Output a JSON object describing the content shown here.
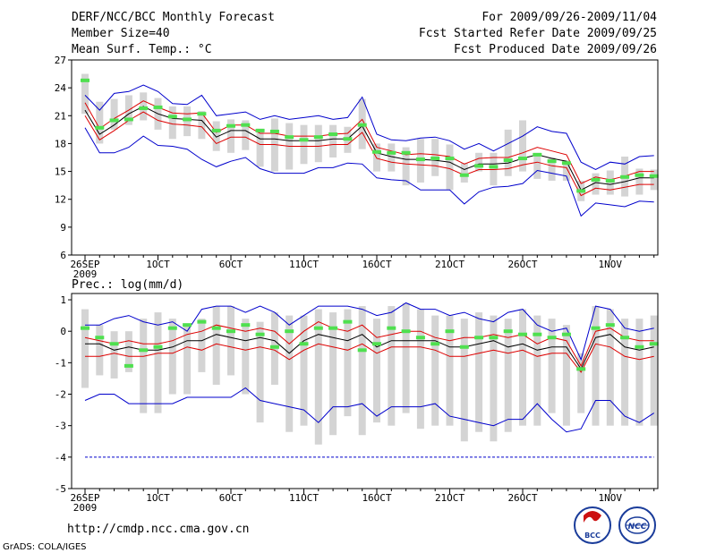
{
  "header": {
    "title": "DERF/NCC/BCC Monthly Forecast",
    "member_size": "Member Size=40",
    "variable": "Mean Surf. Temp.: °C",
    "valid_range": "For 2009/09/26-2009/11/04",
    "started": "Fcst Started Refer Date 2009/09/25",
    "produced": "Fcst Produced Date 2009/09/26"
  },
  "footer": {
    "url": "http://cmdp.ncc.cma.gov.cn",
    "credit": "GrADS: COLA/IGES",
    "logo_bcc": "BCC",
    "logo_ncc": "NCC"
  },
  "colors": {
    "box": "#d4d4d4",
    "mean": "#000000",
    "spread": "#dd0000",
    "extreme": "#0000cc",
    "obs": "#4fe04f",
    "dashed": "#0000cc"
  },
  "chart_data": [
    {
      "type": "line",
      "title": "Mean Surf. Temp.: °C",
      "xticks": [
        {
          "day": 0,
          "label": "26SEP",
          "sub": "2009"
        },
        {
          "day": 5,
          "label": "1OCT"
        },
        {
          "day": 10,
          "label": "6OCT"
        },
        {
          "day": 15,
          "label": "11OCT"
        },
        {
          "day": 20,
          "label": "16OCT"
        },
        {
          "day": 25,
          "label": "21OCT"
        },
        {
          "day": 30,
          "label": "26OCT"
        },
        {
          "day": 36,
          "label": "1NOV"
        }
      ],
      "ylim": [
        6,
        27
      ],
      "yticks": [
        6,
        9,
        12,
        15,
        18,
        21,
        24,
        27
      ],
      "series": [
        {
          "name": "max",
          "values": [
            23.2,
            21.6,
            23.4,
            23.6,
            24.3,
            23.6,
            22.3,
            22.2,
            23.2,
            21.0,
            21.2,
            21.4,
            20.6,
            21.0,
            20.6,
            20.8,
            21.0,
            20.6,
            20.8,
            23.0,
            19.0,
            18.4,
            18.3,
            18.6,
            18.7,
            18.3,
            17.4,
            18.0,
            17.2,
            18.0,
            18.8,
            19.8,
            19.3,
            19.1,
            16.0,
            15.2,
            16.0,
            15.8,
            16.6,
            16.7
          ]
        },
        {
          "name": "upper",
          "values": [
            22.4,
            19.6,
            20.7,
            21.6,
            22.6,
            21.9,
            21.3,
            21.2,
            21.3,
            19.2,
            20.0,
            20.0,
            19.1,
            19.1,
            18.8,
            18.8,
            18.8,
            19.0,
            19.1,
            20.6,
            17.6,
            17.2,
            16.8,
            16.9,
            16.8,
            16.6,
            15.8,
            16.4,
            16.5,
            16.5,
            17.0,
            17.6,
            17.2,
            16.8,
            13.7,
            14.4,
            14.1,
            14.5,
            15.0,
            15.0
          ]
        },
        {
          "name": "mean",
          "values": [
            21.6,
            19.0,
            20.0,
            21.2,
            22.0,
            21.2,
            20.7,
            20.6,
            20.5,
            18.7,
            19.4,
            19.4,
            18.5,
            18.5,
            18.3,
            18.3,
            18.3,
            18.5,
            18.5,
            19.9,
            17.0,
            16.6,
            16.3,
            16.3,
            16.2,
            16.0,
            15.2,
            15.8,
            15.8,
            15.9,
            16.4,
            16.8,
            16.4,
            16.1,
            13.0,
            13.8,
            13.6,
            13.9,
            14.3,
            14.3
          ]
        },
        {
          "name": "lower",
          "values": [
            21.0,
            18.4,
            19.4,
            20.5,
            21.4,
            20.5,
            20.1,
            20.0,
            19.8,
            18.0,
            18.7,
            18.7,
            17.9,
            17.9,
            17.7,
            17.7,
            17.7,
            17.9,
            17.9,
            19.2,
            16.4,
            16.0,
            15.8,
            15.7,
            15.6,
            15.3,
            14.6,
            15.2,
            15.2,
            15.3,
            15.7,
            16.0,
            15.6,
            15.4,
            12.4,
            13.2,
            13.0,
            13.3,
            13.6,
            13.6
          ]
        },
        {
          "name": "min",
          "values": [
            19.7,
            17.0,
            17.0,
            17.6,
            18.8,
            17.8,
            17.7,
            17.4,
            16.3,
            15.5,
            16.1,
            16.5,
            15.3,
            14.8,
            14.8,
            14.8,
            15.4,
            15.4,
            15.9,
            15.8,
            14.3,
            14.1,
            14.0,
            13.0,
            13.0,
            13.0,
            11.5,
            12.8,
            13.3,
            13.4,
            13.7,
            15.1,
            14.8,
            14.5,
            10.2,
            11.6,
            11.4,
            11.2,
            11.8,
            11.7
          ]
        },
        {
          "name": "box_high",
          "values": [
            25.5,
            22.5,
            22.8,
            23.2,
            23.5,
            22.9,
            22.0,
            22.0,
            21.5,
            20.4,
            20.6,
            20.5,
            19.6,
            20.7,
            20.2,
            20.0,
            20.0,
            20.0,
            19.8,
            22.8,
            18.0,
            18.0,
            17.6,
            18.5,
            18.5,
            17.9,
            15.9,
            17.0,
            17.0,
            19.5,
            20.5,
            17.0,
            16.5,
            16.2,
            14.0,
            14.8,
            15.1,
            16.6,
            15.3,
            15.2
          ]
        },
        {
          "name": "box_low",
          "values": [
            21.2,
            18.0,
            19.5,
            20.0,
            20.5,
            19.5,
            18.5,
            18.8,
            18.5,
            17.2,
            17.0,
            17.3,
            15.5,
            15.0,
            15.2,
            15.8,
            16.0,
            16.5,
            17.0,
            17.4,
            15.0,
            15.0,
            13.5,
            13.8,
            14.5,
            13.0,
            13.8,
            15.0,
            13.5,
            14.5,
            15.0,
            14.2,
            14.0,
            14.0,
            11.8,
            12.5,
            12.5,
            12.3,
            12.5,
            13.0
          ]
        },
        {
          "name": "observed",
          "values": [
            24.8,
            19.7,
            20.5,
            20.6,
            21.8,
            21.9,
            20.9,
            20.6,
            21.2,
            19.4,
            19.9,
            20.0,
            19.4,
            19.3,
            18.7,
            18.4,
            18.7,
            19.0,
            18.5,
            20.0,
            17.1,
            17.0,
            17.0,
            16.3,
            16.4,
            16.4,
            14.6,
            15.6,
            15.5,
            16.2,
            16.4,
            16.8,
            16.1,
            15.9,
            12.9,
            14.1,
            14.0,
            14.4,
            14.6,
            14.5
          ]
        }
      ]
    },
    {
      "type": "line",
      "title": "Prec.: log(mm/d)",
      "xticks": [
        {
          "day": 0,
          "label": "26SEP",
          "sub": "2009"
        },
        {
          "day": 5,
          "label": "1OCT"
        },
        {
          "day": 10,
          "label": "6OCT"
        },
        {
          "day": 15,
          "label": "11OCT"
        },
        {
          "day": 20,
          "label": "16OCT"
        },
        {
          "day": 25,
          "label": "21OCT"
        },
        {
          "day": 30,
          "label": "26OCT"
        },
        {
          "day": 36,
          "label": "1NOV"
        }
      ],
      "ylim": [
        -5,
        1.2
      ],
      "yticks": [
        -5,
        -4,
        -3,
        -2,
        -1,
        0,
        1
      ],
      "dashed_floor": -4,
      "series": [
        {
          "name": "max",
          "values": [
            0.2,
            0.2,
            0.4,
            0.5,
            0.3,
            0.2,
            0.3,
            0.0,
            0.7,
            0.8,
            0.8,
            0.6,
            0.8,
            0.6,
            0.2,
            0.5,
            0.8,
            0.8,
            0.8,
            0.7,
            0.5,
            0.6,
            0.9,
            0.7,
            0.7,
            0.5,
            0.6,
            0.4,
            0.3,
            0.6,
            0.7,
            0.2,
            0.0,
            0.1,
            -0.9,
            0.8,
            0.7,
            0.1,
            0.0,
            0.1
          ]
        },
        {
          "name": "upper",
          "values": [
            -0.2,
            -0.3,
            -0.4,
            -0.3,
            -0.4,
            -0.4,
            -0.3,
            -0.1,
            0.0,
            0.2,
            0.1,
            0.0,
            0.1,
            0.0,
            -0.4,
            0.0,
            0.3,
            0.1,
            0.0,
            0.2,
            -0.2,
            -0.1,
            0.0,
            0.0,
            -0.2,
            -0.3,
            -0.2,
            -0.2,
            -0.1,
            -0.2,
            -0.1,
            -0.4,
            -0.2,
            -0.3,
            -1.1,
            0.0,
            0.1,
            -0.2,
            -0.3,
            -0.3
          ]
        },
        {
          "name": "mean",
          "values": [
            -0.4,
            -0.4,
            -0.6,
            -0.5,
            -0.6,
            -0.6,
            -0.5,
            -0.3,
            -0.3,
            -0.1,
            -0.2,
            -0.3,
            -0.2,
            -0.3,
            -0.7,
            -0.3,
            -0.1,
            -0.2,
            -0.3,
            -0.1,
            -0.5,
            -0.3,
            -0.3,
            -0.3,
            -0.3,
            -0.5,
            -0.5,
            -0.4,
            -0.3,
            -0.5,
            -0.4,
            -0.6,
            -0.5,
            -0.5,
            -1.2,
            -0.2,
            -0.1,
            -0.5,
            -0.6,
            -0.5
          ]
        },
        {
          "name": "lower",
          "values": [
            -0.8,
            -0.8,
            -0.7,
            -0.8,
            -0.8,
            -0.7,
            -0.7,
            -0.5,
            -0.6,
            -0.4,
            -0.5,
            -0.6,
            -0.5,
            -0.6,
            -0.9,
            -0.6,
            -0.4,
            -0.5,
            -0.6,
            -0.4,
            -0.7,
            -0.5,
            -0.5,
            -0.5,
            -0.6,
            -0.8,
            -0.8,
            -0.7,
            -0.6,
            -0.7,
            -0.6,
            -0.8,
            -0.7,
            -0.7,
            -1.3,
            -0.4,
            -0.5,
            -0.8,
            -0.9,
            -0.8
          ]
        },
        {
          "name": "min",
          "values": [
            -2.2,
            -2.0,
            -2.0,
            -2.3,
            -2.3,
            -2.3,
            -2.3,
            -2.1,
            -2.1,
            -2.1,
            -2.1,
            -1.8,
            -2.2,
            -2.3,
            -2.4,
            -2.5,
            -2.9,
            -2.4,
            -2.4,
            -2.3,
            -2.7,
            -2.4,
            -2.4,
            -2.4,
            -2.3,
            -2.7,
            -2.8,
            -2.9,
            -3.0,
            -2.8,
            -2.8,
            -2.3,
            -2.8,
            -3.2,
            -3.1,
            -2.2,
            -2.2,
            -2.7,
            -2.9,
            -2.6
          ]
        },
        {
          "name": "box_high",
          "values": [
            0.7,
            0.2,
            0.0,
            0.0,
            0.4,
            0.6,
            0.4,
            0.2,
            0.4,
            0.8,
            0.8,
            0.4,
            0.3,
            0.6,
            0.5,
            0.5,
            0.7,
            0.6,
            0.7,
            0.8,
            0.4,
            0.8,
            0.9,
            0.7,
            0.5,
            0.5,
            0.4,
            0.6,
            0.5,
            0.4,
            0.7,
            0.5,
            0.4,
            0.2,
            -0.7,
            0.8,
            0.7,
            0.4,
            0.4,
            0.5
          ]
        },
        {
          "name": "box_low",
          "values": [
            -1.8,
            -1.4,
            -1.5,
            -1.3,
            -2.6,
            -2.6,
            -2.0,
            -2.0,
            -1.3,
            -1.7,
            -1.4,
            -2.0,
            -2.9,
            -1.7,
            -3.2,
            -3.0,
            -3.6,
            -3.3,
            -2.7,
            -3.3,
            -2.9,
            -3.0,
            -2.6,
            -3.1,
            -3.0,
            -3.0,
            -3.5,
            -3.2,
            -3.5,
            -3.2,
            -3.0,
            -3.0,
            -2.6,
            -3.0,
            -2.6,
            -3.0,
            -3.0,
            -3.0,
            -3.0,
            -3.0
          ]
        },
        {
          "name": "observed",
          "values": [
            0.1,
            -0.2,
            -0.4,
            -1.1,
            -0.6,
            -0.5,
            0.1,
            0.2,
            0.3,
            0.1,
            0.0,
            0.2,
            -0.1,
            -0.5,
            0.0,
            -0.4,
            0.1,
            0.1,
            0.3,
            -0.6,
            -0.4,
            0.1,
            0.0,
            -0.2,
            -0.4,
            0.0,
            -0.5,
            -0.2,
            -0.2,
            0.0,
            -0.1,
            -0.1,
            -0.2,
            -0.1,
            -1.2,
            0.1,
            0.2,
            -0.2,
            -0.5,
            -0.4
          ]
        }
      ]
    }
  ]
}
